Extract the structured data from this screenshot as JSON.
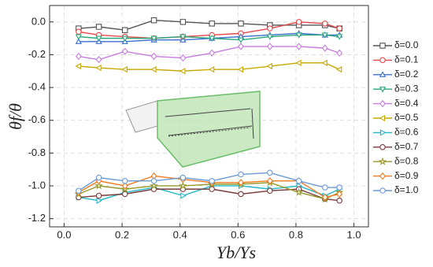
{
  "chart_data": {
    "type": "line",
    "xlabel": "Yb/Ys",
    "ylabel": "θf/θ",
    "x": [
      0.05,
      0.12,
      0.21,
      0.31,
      0.41,
      0.51,
      0.61,
      0.71,
      0.81,
      0.9,
      0.95
    ],
    "series": [
      {
        "name": "δ=0.0",
        "color": "#555555",
        "marker": "square",
        "values": [
          -0.04,
          -0.03,
          -0.05,
          0.01,
          0.0,
          -0.01,
          -0.01,
          -0.02,
          -0.02,
          -0.02,
          -0.04
        ]
      },
      {
        "name": "δ=0.1",
        "color": "#e8474a",
        "marker": "circle",
        "values": [
          -0.06,
          -0.08,
          -0.09,
          -0.1,
          -0.09,
          -0.08,
          -0.07,
          -0.04,
          0.0,
          -0.01,
          -0.04
        ]
      },
      {
        "name": "δ=0.2",
        "color": "#3b6fcf",
        "marker": "triangle-up",
        "values": [
          -0.12,
          -0.12,
          -0.12,
          -0.11,
          -0.11,
          -0.1,
          -0.09,
          -0.08,
          -0.07,
          -0.08,
          -0.08
        ]
      },
      {
        "name": "δ=0.3",
        "color": "#2aa87a",
        "marker": "triangle-down",
        "values": [
          -0.09,
          -0.1,
          -0.1,
          -0.1,
          -0.09,
          -0.1,
          -0.11,
          -0.09,
          -0.08,
          -0.08,
          -0.09
        ]
      },
      {
        "name": "δ=0.4",
        "color": "#c77de0",
        "marker": "diamond",
        "values": [
          -0.21,
          -0.23,
          -0.18,
          -0.21,
          -0.22,
          -0.19,
          -0.15,
          -0.15,
          -0.15,
          -0.16,
          -0.19
        ]
      },
      {
        "name": "δ=0.5",
        "color": "#c9a800",
        "marker": "triangle-left",
        "values": [
          -0.27,
          -0.28,
          -0.29,
          -0.29,
          -0.3,
          -0.29,
          -0.29,
          -0.27,
          -0.25,
          -0.25,
          -0.29
        ]
      },
      {
        "name": "δ=0.6",
        "color": "#20b8c8",
        "marker": "triangle-right",
        "values": [
          -1.07,
          -1.09,
          -1.04,
          -1.01,
          -1.06,
          -1.0,
          -1.0,
          -1.02,
          -1.0,
          -1.06,
          -1.02
        ]
      },
      {
        "name": "δ=0.7",
        "color": "#7a3b3b",
        "marker": "circle",
        "values": [
          -1.07,
          -1.06,
          -1.05,
          -1.02,
          -1.02,
          -1.02,
          -1.05,
          -1.03,
          -1.02,
          -1.08,
          -1.09
        ]
      },
      {
        "name": "δ=0.8",
        "color": "#9a9a2a",
        "marker": "star",
        "values": [
          -1.05,
          -1.0,
          -1.02,
          -1.0,
          -1.0,
          -0.99,
          -0.99,
          -0.98,
          -1.04,
          -1.08,
          -1.04
        ]
      },
      {
        "name": "δ=0.9",
        "color": "#f07a20",
        "marker": "diamond",
        "values": [
          -1.04,
          -0.97,
          -1.0,
          -0.94,
          -0.96,
          -0.98,
          -0.98,
          -0.97,
          -0.97,
          -1.07,
          -1.05
        ]
      },
      {
        "name": "δ=1.0",
        "color": "#6a9ad8",
        "marker": "circle",
        "values": [
          -1.03,
          -0.95,
          -0.97,
          -0.97,
          -0.95,
          -0.97,
          -0.93,
          -0.92,
          -0.97,
          -1.01,
          -1.01
        ]
      }
    ],
    "xlim": [
      -0.05,
      1.05
    ],
    "xticks": [
      {
        "value": 0,
        "label": "0.0"
      },
      0.2,
      0.4,
      0.6,
      0.8,
      {
        "value": 1,
        "label": "1.0"
      }
    ],
    "ylim": [
      -1.25,
      0.1
    ],
    "yticks": [
      {
        "value": 0,
        "label": "0.0"
      },
      -0.2,
      -0.4,
      -0.6,
      -0.8,
      {
        "value": -1,
        "label": "-1.0"
      },
      -1.2
    ],
    "grid": true
  }
}
